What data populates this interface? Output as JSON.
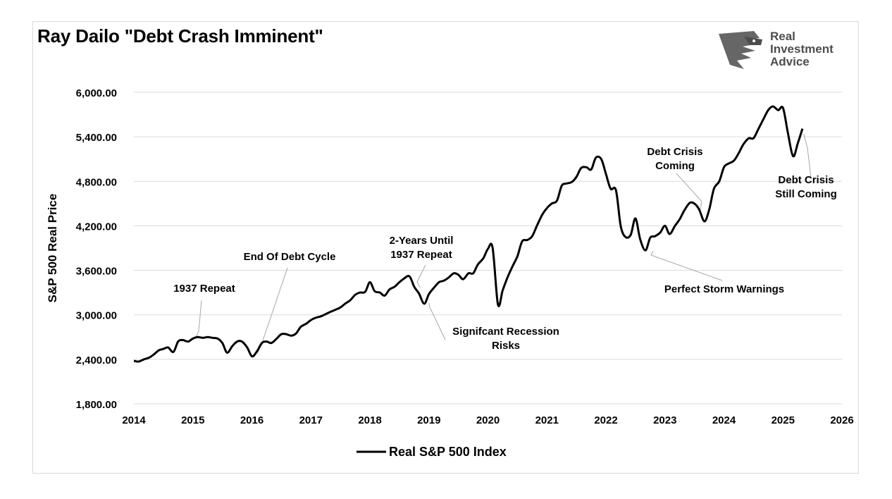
{
  "header": {
    "title": "Ray Dailo \"Debt Crash Imminent\"",
    "logo_line1": "Real",
    "logo_line2": "Investment",
    "logo_line3": "Advice",
    "logo_icon": "eagle-head-icon"
  },
  "colors": {
    "line": "#000000",
    "grid": "#d9d9d9",
    "leader": "#a6a6a6",
    "logo": "#4d4d4d"
  },
  "chart_data": {
    "type": "line",
    "title": "Ray Dailo \"Debt Crash Imminent\"",
    "ylabel": "S&P 500 Real Price",
    "xlabel": "",
    "ylim": [
      1800,
      6000
    ],
    "xlim": [
      2014,
      2026
    ],
    "grid": true,
    "legend_position": "bottom-center",
    "y_ticks": [
      "6,000.00",
      "5,400.00",
      "4,800.00",
      "4,200.00",
      "3,600.00",
      "3,000.00",
      "2,400.00",
      "1,800.00"
    ],
    "y_tick_values": [
      6000,
      5400,
      4800,
      4200,
      3600,
      3000,
      2400,
      1800
    ],
    "x_ticks": [
      "2014",
      "2015",
      "2016",
      "2017",
      "2018",
      "2019",
      "2020",
      "2021",
      "2022",
      "2023",
      "2024",
      "2025",
      "2026"
    ],
    "x_tick_values": [
      2014,
      2015,
      2016,
      2017,
      2018,
      2019,
      2020,
      2021,
      2022,
      2023,
      2024,
      2025,
      2026
    ],
    "series": [
      {
        "name": "Real S&P 500 Index",
        "x": [
          2014.0,
          2014.08,
          2014.17,
          2014.25,
          2014.33,
          2014.42,
          2014.5,
          2014.58,
          2014.67,
          2014.75,
          2014.83,
          2014.92,
          2015.0,
          2015.08,
          2015.17,
          2015.25,
          2015.33,
          2015.42,
          2015.5,
          2015.58,
          2015.67,
          2015.75,
          2015.83,
          2015.92,
          2016.0,
          2016.08,
          2016.17,
          2016.25,
          2016.33,
          2016.42,
          2016.5,
          2016.58,
          2016.67,
          2016.75,
          2016.83,
          2016.92,
          2017.0,
          2017.08,
          2017.17,
          2017.25,
          2017.33,
          2017.42,
          2017.5,
          2017.58,
          2017.67,
          2017.75,
          2017.83,
          2017.92,
          2018.0,
          2018.08,
          2018.17,
          2018.25,
          2018.33,
          2018.42,
          2018.5,
          2018.58,
          2018.67,
          2018.75,
          2018.83,
          2018.92,
          2019.0,
          2019.08,
          2019.17,
          2019.25,
          2019.33,
          2019.42,
          2019.5,
          2019.58,
          2019.67,
          2019.75,
          2019.83,
          2019.92,
          2020.0,
          2020.08,
          2020.17,
          2020.25,
          2020.33,
          2020.42,
          2020.5,
          2020.58,
          2020.67,
          2020.75,
          2020.83,
          2020.92,
          2021.0,
          2021.08,
          2021.17,
          2021.25,
          2021.33,
          2021.42,
          2021.5,
          2021.58,
          2021.67,
          2021.75,
          2021.83,
          2021.92,
          2022.0,
          2022.08,
          2022.17,
          2022.25,
          2022.33,
          2022.42,
          2022.5,
          2022.58,
          2022.67,
          2022.75,
          2022.83,
          2022.92,
          2023.0,
          2023.08,
          2023.17,
          2023.25,
          2023.33,
          2023.42,
          2023.5,
          2023.58,
          2023.67,
          2023.75,
          2023.83,
          2023.92,
          2024.0,
          2024.08,
          2024.17,
          2024.25,
          2024.33,
          2024.42,
          2024.5,
          2024.58,
          2024.67,
          2024.75,
          2024.83,
          2024.92,
          2025.0,
          2025.08,
          2025.17,
          2025.25,
          2025.33
        ],
        "values": [
          2380,
          2370,
          2400,
          2420,
          2460,
          2520,
          2540,
          2560,
          2500,
          2640,
          2660,
          2640,
          2680,
          2700,
          2690,
          2700,
          2690,
          2680,
          2620,
          2490,
          2580,
          2640,
          2640,
          2560,
          2440,
          2500,
          2620,
          2640,
          2620,
          2680,
          2740,
          2740,
          2720,
          2750,
          2840,
          2880,
          2930,
          2960,
          2980,
          3010,
          3040,
          3070,
          3100,
          3150,
          3200,
          3270,
          3300,
          3310,
          3440,
          3320,
          3300,
          3260,
          3340,
          3380,
          3440,
          3490,
          3520,
          3380,
          3290,
          3150,
          3280,
          3360,
          3440,
          3460,
          3500,
          3560,
          3540,
          3480,
          3560,
          3560,
          3680,
          3760,
          3890,
          3900,
          3140,
          3330,
          3500,
          3660,
          3790,
          3990,
          4010,
          4060,
          4200,
          4350,
          4440,
          4500,
          4540,
          4740,
          4770,
          4790,
          4860,
          4980,
          4990,
          4960,
          5120,
          5100,
          4900,
          4700,
          4680,
          4200,
          4050,
          4080,
          4300,
          4020,
          3870,
          4040,
          4060,
          4110,
          4200,
          4090,
          4200,
          4290,
          4410,
          4510,
          4500,
          4420,
          4260,
          4420,
          4700,
          4800,
          4990,
          5040,
          5080,
          5180,
          5300,
          5380,
          5380,
          5500,
          5640,
          5760,
          5810,
          5760,
          5790,
          5470,
          5140,
          5310,
          5510
        ]
      }
    ],
    "annotations": [
      {
        "text": [
          "1937 Repeat"
        ],
        "x": 2015.05,
        "y": 2700
      },
      {
        "text": [
          "End Of Debt Cycle"
        ],
        "x": 2016.1,
        "y": 2490
      },
      {
        "text": [
          "2-Years Until",
          "1937 Repeat"
        ],
        "x": 2018.85,
        "y": 3370
      },
      {
        "text": [
          "Signifcant Recession",
          "Risks"
        ],
        "x": 2019.0,
        "y": 3160
      },
      {
        "text": [
          "Debt Crisis",
          "Coming"
        ],
        "x": 2023.6,
        "y": 4420
      },
      {
        "text": [
          "Perfect Storm Warnings"
        ],
        "x": 2022.8,
        "y": 3860
      },
      {
        "text": [
          "Debt Crisis",
          "Still Coming"
        ],
        "x": 2025.35,
        "y": 5440
      }
    ]
  }
}
